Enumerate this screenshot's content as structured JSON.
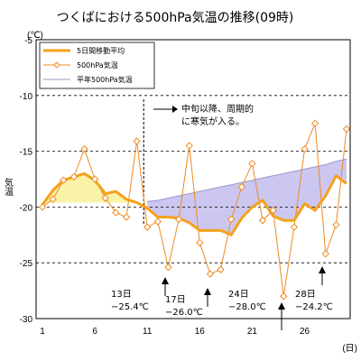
{
  "chart_data": {
    "type": "line",
    "title": "つくばにおける500hPa気温の推移(09時)",
    "ylabel": "気温",
    "yunit": "(℃)",
    "xunit": "(日)",
    "xlim": [
      1,
      30
    ],
    "ylim": [
      -30,
      -5
    ],
    "xticks": [
      1,
      6,
      11,
      16,
      21,
      26
    ],
    "yticks": [
      -5,
      -10,
      -15,
      -20,
      -25,
      -30
    ],
    "x": [
      1,
      2,
      3,
      4,
      5,
      6,
      7,
      8,
      9,
      10,
      11,
      12,
      13,
      14,
      15,
      16,
      17,
      18,
      19,
      20,
      21,
      22,
      23,
      24,
      25,
      26,
      27,
      28,
      29,
      30
    ],
    "series": [
      {
        "name": "5日間移動平均",
        "color": "#f5a11c",
        "values": [
          -19.8,
          -18.5,
          -17.6,
          -17.3,
          -17.0,
          -17.6,
          -18.8,
          -18.6,
          -19.3,
          -19.6,
          -20.1,
          -20.9,
          -20.9,
          -21.0,
          -21.4,
          -22.1,
          -22.1,
          -22.1,
          -22.5,
          -21.0,
          -20.0,
          -19.4,
          -20.8,
          -21.2,
          -21.2,
          -19.7,
          -20.3,
          -19.0,
          -17.2,
          -17.9
        ]
      },
      {
        "name": "500hPa気温",
        "color": "#f08a20",
        "values": [
          -20.0,
          -19.3,
          -17.6,
          -17.3,
          -14.8,
          -17.5,
          -19.2,
          -20.5,
          -20.9,
          -14.1,
          -21.8,
          -21.3,
          -25.4,
          -21.1,
          -14.5,
          -23.2,
          -26.0,
          -25.6,
          -21.1,
          -18.2,
          -16.1,
          -21.2,
          -20.3,
          -28.0,
          -21.8,
          -14.8,
          -12.5,
          -24.2,
          -21.6,
          -13.0
        ]
      },
      {
        "name": "平年500hPa気温",
        "color": "#9a97c9",
        "values": [
          null,
          null,
          null,
          null,
          null,
          null,
          null,
          null,
          null,
          null,
          -19.5,
          -19.4,
          -19.2,
          -19.0,
          -18.8,
          -18.6,
          -18.4,
          -18.2,
          -18.0,
          -17.8,
          -17.6,
          -17.4,
          -17.2,
          -17.0,
          -16.8,
          -16.6,
          -16.4,
          -16.2,
          -15.9,
          -15.7
        ]
      }
    ],
    "fill_below_color": "#f8f3a8",
    "fill_above_color": "#cbc7f0",
    "legend_position": "top-left",
    "grid": "dashed horizontal",
    "annotation": {
      "text_line1": "中旬以降、周期的",
      "text_line2": "に寒気が入る。",
      "divider_day": 11
    },
    "callouts": [
      {
        "day": "13日",
        "temp": "−25.4℃",
        "x": 13
      },
      {
        "day": "17日",
        "temp": "−26.0℃",
        "x": 17
      },
      {
        "day": "24日",
        "temp": "−28.0℃",
        "x": 24
      },
      {
        "day": "28日",
        "temp": "−24.2℃",
        "x": 28
      }
    ]
  }
}
